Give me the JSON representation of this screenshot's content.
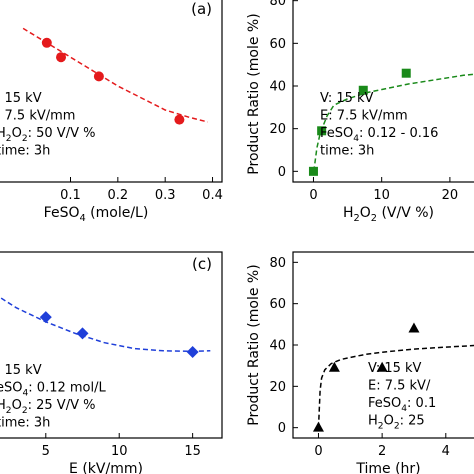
{
  "chart_data": [
    {
      "id": "a",
      "type": "scatter",
      "panel_label": "(a)",
      "xlabel": "FeSO",
      "xlabel_sub": "4",
      "xlabel_rest": " (mole/L)",
      "ylabel": "",
      "xlim": [
        -0.07,
        0.42
      ],
      "ylim": [
        0,
        80
      ],
      "xticks": [
        0.1,
        0.2,
        0.3,
        0.4
      ],
      "xtick_labels": [
        "0.1",
        "0.2",
        "0.3",
        "0.4"
      ],
      "yticks": [],
      "color": "#e41a1c",
      "marker": "circle",
      "points": {
        "x": [
          0.05,
          0.08,
          0.16,
          0.33
        ],
        "y": [
          58,
          52,
          44,
          26
        ]
      },
      "fit": {
        "x": [
          0.0,
          0.05,
          0.1,
          0.15,
          0.2,
          0.25,
          0.3,
          0.35,
          0.39
        ],
        "y": [
          64,
          58,
          52,
          46,
          40,
          35,
          30,
          27,
          25
        ]
      },
      "annotation": [
        {
          "text": ": 15 kV"
        },
        {
          "text": ": 7.5 kV/mm"
        },
        {
          "parts": [
            [
              "H"
            ],
            [
              "2",
              "sub"
            ],
            [
              "O"
            ],
            [
              "2",
              "sub"
            ],
            [
              ": 50 V/V %"
            ]
          ]
        },
        {
          "text": "time: 3h"
        }
      ]
    },
    {
      "id": "b",
      "type": "scatter",
      "panel_label": "",
      "xlabel": "H",
      "xlabel_parts": [
        [
          "H"
        ],
        [
          "2",
          "sub"
        ],
        [
          "O"
        ],
        [
          "2",
          "sub"
        ],
        [
          " (V/V %)"
        ]
      ],
      "ylabel": "Product Ratio (mole %)",
      "xlim": [
        -3,
        25
      ],
      "ylim": [
        -5,
        85
      ],
      "xticks": [
        0,
        10,
        20
      ],
      "xtick_labels": [
        "0",
        "10",
        "20"
      ],
      "yticks": [
        0,
        20,
        40,
        60,
        80
      ],
      "ytick_labels": [
        "0",
        "20",
        "40",
        "60",
        "80"
      ],
      "color": "#1a8a1a",
      "marker": "square",
      "points": {
        "x": [
          0,
          1.2,
          7.3,
          13.6
        ],
        "y": [
          0,
          19,
          38,
          46
        ]
      },
      "fit": {
        "x": [
          0.05,
          0.5,
          1,
          2,
          3,
          5,
          8,
          11,
          14,
          18,
          22,
          25
        ],
        "y": [
          0,
          11,
          18,
          26,
          31,
          34,
          37,
          39,
          41,
          43,
          45,
          46
        ]
      },
      "annotation": [
        {
          "text": "V: 15 kV"
        },
        {
          "text": "E: 7.5 kV/mm"
        },
        {
          "parts": [
            [
              "FeSO"
            ],
            [
              "4",
              "sub"
            ],
            [
              ": 0.12 - 0.16"
            ]
          ]
        },
        {
          "text": "time: 3h"
        }
      ]
    },
    {
      "id": "c",
      "type": "scatter",
      "panel_label": "(c)",
      "xlabel": "E (kV/mm)",
      "ylabel": "",
      "xlim": [
        1.2,
        17
      ],
      "ylim": [
        0,
        80
      ],
      "xticks": [
        5,
        10,
        15
      ],
      "xtick_labels": [
        "5",
        "10",
        "15"
      ],
      "yticks": [],
      "color": "#1f3fd9",
      "marker": "diamond",
      "points": {
        "x": [
          5,
          7.5,
          15
        ],
        "y": [
          52,
          45,
          37
        ]
      },
      "fit": {
        "x": [
          1.5,
          3,
          5,
          7,
          9,
          11,
          13,
          15,
          16.2
        ],
        "y": [
          62,
          56,
          50,
          45,
          41,
          38.5,
          37.5,
          37.3,
          37.5
        ]
      },
      "annotation": [
        {
          "text": ": 15 kV"
        },
        {
          "parts": [
            [
              "eSO"
            ],
            [
              "4",
              "sub"
            ],
            [
              ": 0.12 mol/L"
            ]
          ]
        },
        {
          "parts": [
            [
              "H"
            ],
            [
              "2",
              "sub"
            ],
            [
              "O"
            ],
            [
              "2",
              "sub"
            ],
            [
              ": 25 V/V %"
            ]
          ]
        },
        {
          "text": "time: 3h"
        }
      ]
    },
    {
      "id": "d",
      "type": "scatter",
      "panel_label": "",
      "xlabel": "Time (hr)",
      "ylabel": "Product Ratio (mole %)",
      "xlim": [
        -0.8,
        5.2
      ],
      "ylim": [
        -5,
        85
      ],
      "xticks": [
        0,
        2,
        4
      ],
      "xtick_labels": [
        "0",
        "2",
        "4"
      ],
      "yticks": [
        0,
        20,
        40,
        60,
        80
      ],
      "ytick_labels": [
        "0",
        "20",
        "40",
        "60",
        "80"
      ],
      "color": "#000000",
      "marker": "triangle",
      "points": {
        "x": [
          0,
          0.5,
          2,
          3
        ],
        "y": [
          0,
          29,
          29,
          48
        ]
      },
      "fit": {
        "x": [
          0.0,
          0.05,
          0.1,
          0.2,
          0.4,
          0.7,
          1,
          1.5,
          2,
          3,
          4,
          5.2
        ],
        "y": [
          0,
          18,
          24,
          28,
          31,
          33,
          34,
          35.5,
          36.5,
          38,
          39,
          40
        ]
      },
      "annotation": [
        {
          "text": "V: 15 kV"
        },
        {
          "text": "E: 7.5 kV/"
        },
        {
          "parts": [
            [
              "FeSO"
            ],
            [
              "4",
              "sub"
            ],
            [
              ": 0.1"
            ]
          ]
        },
        {
          "parts": [
            [
              "H"
            ],
            [
              "2",
              "sub"
            ],
            [
              "O"
            ],
            [
              "2",
              "sub"
            ],
            [
              ": 25"
            ]
          ]
        }
      ]
    }
  ]
}
